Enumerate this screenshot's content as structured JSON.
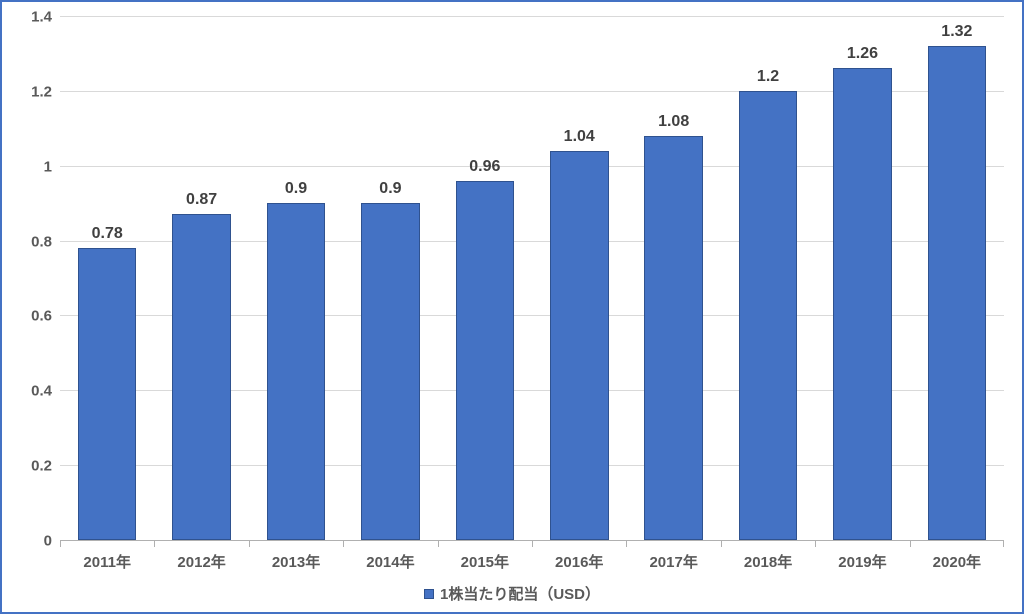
{
  "chart": {
    "type": "bar",
    "categories": [
      "2011年",
      "2012年",
      "2013年",
      "2014年",
      "2015年",
      "2016年",
      "2017年",
      "2018年",
      "2019年",
      "2020年"
    ],
    "values": [
      0.78,
      0.87,
      0.9,
      0.9,
      0.96,
      1.04,
      1.08,
      1.2,
      1.26,
      1.32
    ],
    "value_labels": [
      "0.78",
      "0.87",
      "0.9",
      "0.9",
      "0.96",
      "1.04",
      "1.08",
      "1.2",
      "1.26",
      "1.32"
    ],
    "bar_color": "#4472c4",
    "bar_border_color": "#2f528f",
    "bar_width": 0.62,
    "ylim": [
      0,
      1.4
    ],
    "yticks": [
      0,
      0.2,
      0.4,
      0.6,
      0.8,
      1,
      1.2,
      1.4
    ],
    "ytick_labels": [
      "0",
      "0.2",
      "0.4",
      "0.6",
      "0.8",
      "1",
      "1.2",
      "1.4"
    ],
    "grid_color": "#d9d9d9",
    "background_color": "#ffffff",
    "border_color": "#4472c4",
    "legend_label": "1株当たり配当（USD）",
    "label_fontsize": 15,
    "value_fontsize": 16,
    "label_color": "#595959",
    "value_color": "#404040"
  }
}
